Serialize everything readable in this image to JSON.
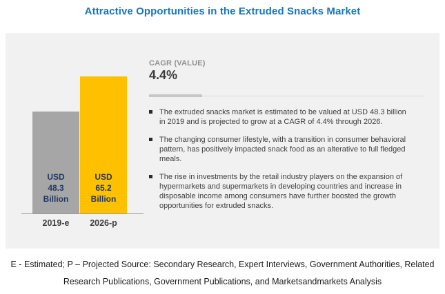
{
  "title": "Attractive Opportunities in the Extruded Snacks Market",
  "chart_data": {
    "type": "bar",
    "categories": [
      "2019-e",
      "2026-p"
    ],
    "values": [
      48.3,
      65.2
    ],
    "unit": "USD Billion",
    "bar_value_labels": [
      "USD\n48.3\nBillion",
      "USD\n65.2\nBillion"
    ],
    "bar_colors": [
      "#A6A6A6",
      "#FFC000"
    ],
    "ylim": [
      0,
      67
    ],
    "grid": false,
    "legend": false,
    "title": "Attractive Opportunities in the Extruded Snacks Market"
  },
  "cagr_panel": {
    "label": "CAGR (VALUE)",
    "value": "4.4%"
  },
  "bullets": [
    "The extruded snacks market is estimated to be valued at USD 48.3 billion in 2019 and is projected to grow at a CAGR of 4.4% through 2026.",
    "The changing consumer lifestyle, with a transition in consumer behavioral pattern, has positively impacted snack food as an alterative to full fledged meals.",
    "The rise in investments by the retail industry players on the expansion of hypermarkets and supermarkets in developing countries and increase in disposable income among consumers have further boosted the growth opportunities for extruded snacks."
  ],
  "footer": {
    "line1": "E - Estimated; P – Projected Source: Secondary Research, Expert Interviews, Government Authorities, Related",
    "line2": "Research Publications, Government Publications, and Marketsandmarkets Analysis"
  },
  "colors": {
    "title_blue": "#1B75BC",
    "bar_gray": "#A6A6A6",
    "bar_yellow": "#FFC000",
    "bar_label_navy": "#1F3864",
    "panel_bg": "#F1F1F2"
  }
}
